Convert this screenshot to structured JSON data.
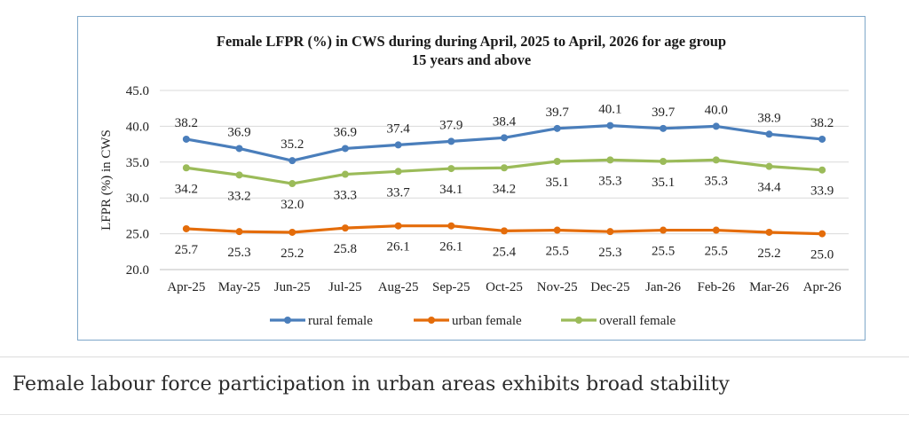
{
  "page": {
    "caption": "Female labour force participation in urban areas exhibits broad stability"
  },
  "chart_data": {
    "type": "line",
    "title": "Female LFPR (%) in CWS during during April, 2025 to April, 2026 for age group",
    "subtitle": "15 years and above",
    "xlabel": "",
    "ylabel": "LFPR (%) in CWS",
    "ylim": [
      20,
      45
    ],
    "yticks": [
      "20.0",
      "25.0",
      "30.0",
      "35.0",
      "40.0",
      "45.0"
    ],
    "grid": true,
    "legend_position": "bottom",
    "categories": [
      "Apr-25",
      "May-25",
      "Jun-25",
      "Jul-25",
      "Aug-25",
      "Sep-25",
      "Oct-25",
      "Nov-25",
      "Dec-25",
      "Jan-26",
      "Feb-26",
      "Mar-26",
      "Apr-26"
    ],
    "series": [
      {
        "name": "rural female",
        "color": "#4a7ebb",
        "label_position": "above",
        "values": [
          38.2,
          36.9,
          35.2,
          36.9,
          37.4,
          37.9,
          38.4,
          39.7,
          40.1,
          39.7,
          40.0,
          38.9,
          38.2
        ]
      },
      {
        "name": "urban female",
        "color": "#e46c0a",
        "label_position": "below",
        "values": [
          25.7,
          25.3,
          25.2,
          25.8,
          26.1,
          26.1,
          25.4,
          25.5,
          25.3,
          25.5,
          25.5,
          25.2,
          25.0
        ]
      },
      {
        "name": "overall female",
        "color": "#9bbb59",
        "label_position": "below",
        "values": [
          34.2,
          33.2,
          32.0,
          33.3,
          33.7,
          34.1,
          34.2,
          35.1,
          35.3,
          35.1,
          35.3,
          34.4,
          33.9
        ]
      }
    ]
  }
}
